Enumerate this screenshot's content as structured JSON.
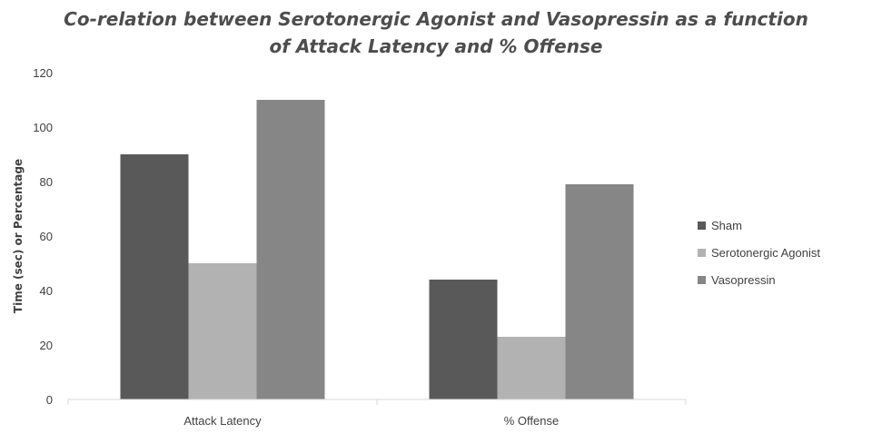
{
  "chart_data": {
    "type": "bar",
    "title_line1": "Co-relation between Serotonergic Agonist and Vasopressin as a function",
    "title_line2": "of Attack Latency and % Offense",
    "xlabel": "",
    "ylabel": "Time (sec) or Percentage",
    "ylim": [
      0,
      120
    ],
    "yticks": [
      "0",
      "20",
      "40",
      "60",
      "80",
      "100",
      "120"
    ],
    "categories": [
      "Attack Latency",
      "% Offense"
    ],
    "series": [
      {
        "name": "Sham",
        "values": [
          90,
          44
        ],
        "color": "#595959"
      },
      {
        "name": "Serotonergic Agonist",
        "values": [
          50,
          23
        ],
        "color": "#b2b2b2"
      },
      {
        "name": "Vasopressin",
        "values": [
          110,
          79
        ],
        "color": "#868686"
      }
    ],
    "grid": false,
    "legend_position": "right"
  }
}
